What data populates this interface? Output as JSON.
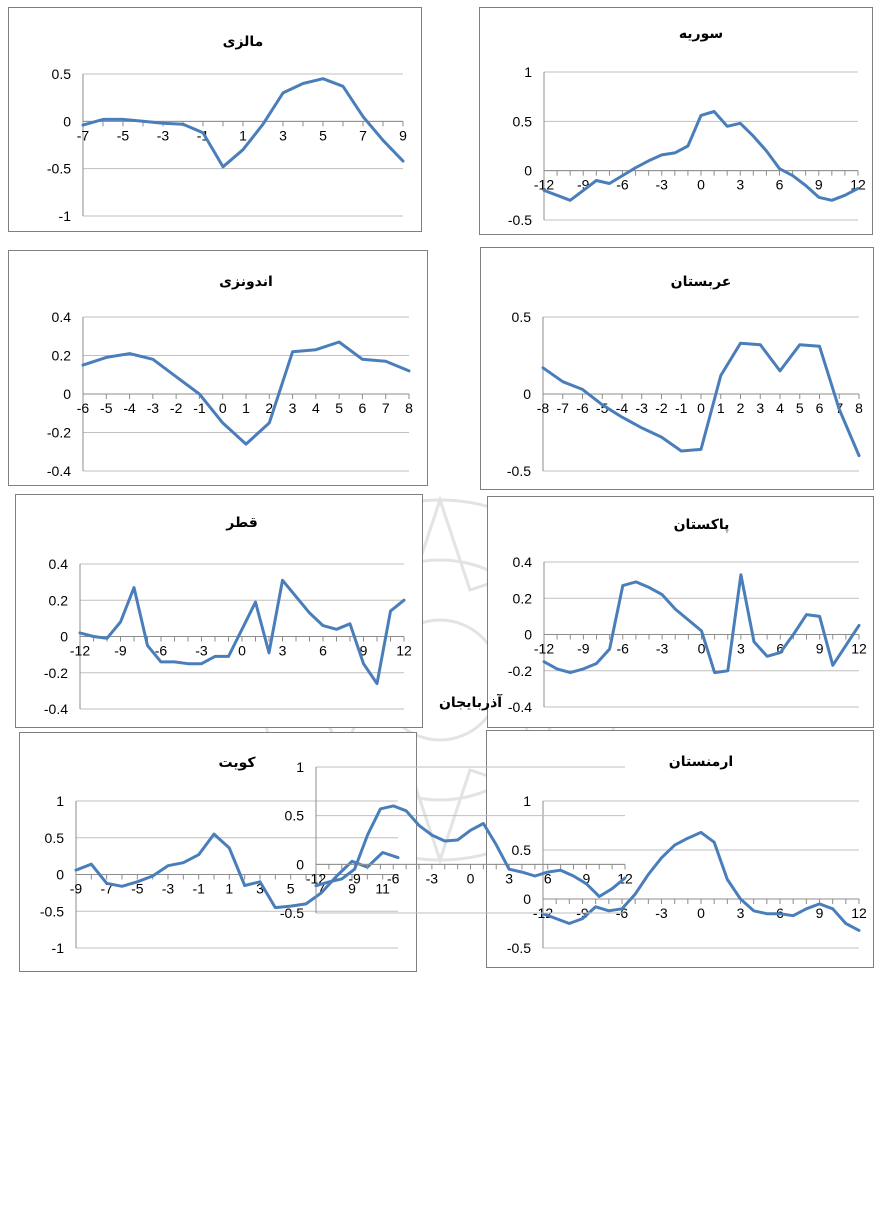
{
  "line_color": "#4a7ebb",
  "grid_color": "#bfbfbf",
  "chart_data": [
    {
      "type": "line",
      "title": "مالزی",
      "x": [
        -7,
        -6,
        -5,
        -4,
        -3,
        -2,
        -1,
        0,
        1,
        2,
        3,
        4,
        5,
        6,
        7,
        8,
        9
      ],
      "series": [
        {
          "values": [
            -0.04,
            0.02,
            0.02,
            0.0,
            -0.02,
            -0.03,
            -0.12,
            -0.48,
            -0.3,
            -0.03,
            0.3,
            0.4,
            0.45,
            0.37,
            0.05,
            -0.2,
            -0.42
          ]
        }
      ],
      "ylim": [
        -1,
        0.5
      ],
      "yticks": [
        -1,
        -0.5,
        0,
        0.5
      ],
      "ytick_labels": [
        "-1",
        "-0.5",
        "0",
        "0.5"
      ],
      "xtick_labels": [
        {
          "x": -7,
          "t": "-7"
        },
        {
          "x": -5,
          "t": "-5"
        },
        {
          "x": -3,
          "t": "-3"
        },
        {
          "x": -1,
          "t": "-1"
        },
        {
          "x": 1,
          "t": "1"
        },
        {
          "x": 3,
          "t": "3"
        },
        {
          "x": 5,
          "t": "5"
        },
        {
          "x": 7,
          "t": "7"
        },
        {
          "x": 9,
          "t": "9"
        }
      ],
      "grid": true
    },
    {
      "type": "line",
      "title": "سوریه",
      "x": [
        -12,
        -11,
        -10,
        -9,
        -8,
        -7,
        -6,
        -5,
        -4,
        -3,
        -2,
        -1,
        0,
        1,
        2,
        3,
        4,
        5,
        6,
        7,
        8,
        9,
        10,
        11,
        12
      ],
      "series": [
        {
          "values": [
            -0.2,
            -0.25,
            -0.3,
            -0.2,
            -0.1,
            -0.13,
            -0.05,
            0.03,
            0.1,
            0.16,
            0.18,
            0.25,
            0.56,
            0.6,
            0.45,
            0.48,
            0.35,
            0.2,
            0.02,
            -0.05,
            -0.15,
            -0.27,
            -0.3,
            -0.25,
            -0.18
          ]
        }
      ],
      "ylim": [
        -0.5,
        1
      ],
      "yticks": [
        -0.5,
        0,
        0.5,
        1
      ],
      "ytick_labels": [
        "-0.5",
        "0",
        "0.5",
        "1"
      ],
      "xtick_labels": [
        {
          "x": -12,
          "t": "-12"
        },
        {
          "x": -9,
          "t": "-9"
        },
        {
          "x": -6,
          "t": "-6"
        },
        {
          "x": -3,
          "t": "-3"
        },
        {
          "x": 0,
          "t": "0"
        },
        {
          "x": 3,
          "t": "3"
        },
        {
          "x": 6,
          "t": "6"
        },
        {
          "x": 9,
          "t": "9"
        },
        {
          "x": 12,
          "t": "12"
        }
      ],
      "grid": true
    },
    {
      "type": "line",
      "title": "اندونزی",
      "x": [
        -6,
        -5,
        -4,
        -3,
        -2,
        -1,
        0,
        1,
        2,
        3,
        4,
        5,
        6,
        7,
        8
      ],
      "series": [
        {
          "values": [
            0.15,
            0.19,
            0.21,
            0.18,
            0.09,
            0.0,
            -0.15,
            -0.26,
            -0.15,
            0.22,
            0.23,
            0.27,
            0.18,
            0.17,
            0.12
          ]
        }
      ],
      "ylim": [
        -0.4,
        0.4
      ],
      "yticks": [
        -0.4,
        -0.2,
        0,
        0.2,
        0.4
      ],
      "ytick_labels": [
        "-0.4",
        "-0.2",
        "0",
        "0.2",
        "0.4"
      ],
      "xtick_labels": [
        {
          "x": -6,
          "t": "-6"
        },
        {
          "x": -5,
          "t": "-5"
        },
        {
          "x": -4,
          "t": "-4"
        },
        {
          "x": -3,
          "t": "-3"
        },
        {
          "x": -2,
          "t": "-2"
        },
        {
          "x": -1,
          "t": "-1"
        },
        {
          "x": 0,
          "t": "0"
        },
        {
          "x": 1,
          "t": "1"
        },
        {
          "x": 2,
          "t": "2"
        },
        {
          "x": 3,
          "t": "3"
        },
        {
          "x": 4,
          "t": "4"
        },
        {
          "x": 5,
          "t": "5"
        },
        {
          "x": 6,
          "t": "6"
        },
        {
          "x": 7,
          "t": "7"
        },
        {
          "x": 8,
          "t": "8"
        }
      ],
      "grid": true
    },
    {
      "type": "line",
      "title": "عربستان",
      "x": [
        -8,
        -7,
        -6,
        -5,
        -4,
        -3,
        -2,
        -1,
        0,
        1,
        2,
        3,
        4,
        5,
        6,
        7,
        8
      ],
      "series": [
        {
          "values": [
            0.17,
            0.08,
            0.03,
            -0.07,
            -0.15,
            -0.22,
            -0.28,
            -0.37,
            -0.36,
            0.12,
            0.33,
            0.32,
            0.15,
            0.32,
            0.31,
            -0.1,
            -0.4
          ]
        }
      ],
      "ylim": [
        -0.5,
        0.5
      ],
      "yticks": [
        -0.5,
        0,
        0.5
      ],
      "ytick_labels": [
        "-0.5",
        "0",
        "0.5"
      ],
      "xtick_labels": [
        {
          "x": -8,
          "t": "-8"
        },
        {
          "x": -7,
          "t": "-7"
        },
        {
          "x": -6,
          "t": "-6"
        },
        {
          "x": -5,
          "t": "-5"
        },
        {
          "x": -4,
          "t": "-4"
        },
        {
          "x": -3,
          "t": "-3"
        },
        {
          "x": -2,
          "t": "-2"
        },
        {
          "x": -1,
          "t": "-1"
        },
        {
          "x": 0,
          "t": "0"
        },
        {
          "x": 1,
          "t": "1"
        },
        {
          "x": 2,
          "t": "2"
        },
        {
          "x": 3,
          "t": "3"
        },
        {
          "x": 4,
          "t": "4"
        },
        {
          "x": 5,
          "t": "5"
        },
        {
          "x": 6,
          "t": "6"
        },
        {
          "x": 7,
          "t": "7"
        },
        {
          "x": 8,
          "t": "8"
        }
      ],
      "grid": true
    },
    {
      "type": "line",
      "title": "قطر",
      "x": [
        -12,
        -11,
        -10,
        -9,
        -8,
        -7,
        -6,
        -5,
        -4,
        -3,
        -2,
        -1,
        0,
        1,
        2,
        3,
        4,
        5,
        6,
        7,
        8,
        9,
        10,
        11,
        12
      ],
      "series": [
        {
          "values": [
            0.02,
            0.0,
            -0.01,
            0.08,
            0.27,
            -0.05,
            -0.14,
            -0.14,
            -0.15,
            -0.15,
            -0.11,
            -0.11,
            0.04,
            0.19,
            -0.09,
            0.31,
            0.22,
            0.13,
            0.06,
            0.04,
            0.07,
            -0.15,
            -0.26,
            0.14,
            0.2
          ]
        }
      ],
      "ylim": [
        -0.4,
        0.4
      ],
      "yticks": [
        -0.4,
        -0.2,
        0,
        0.2,
        0.4
      ],
      "ytick_labels": [
        "-0.4",
        "-0.2",
        "0",
        "0.2",
        "0.4"
      ],
      "xtick_labels": [
        {
          "x": -12,
          "t": "-12"
        },
        {
          "x": -9,
          "t": "-9"
        },
        {
          "x": -6,
          "t": "-6"
        },
        {
          "x": -3,
          "t": "-3"
        },
        {
          "x": 0,
          "t": "0"
        },
        {
          "x": 3,
          "t": "3"
        },
        {
          "x": 6,
          "t": "6"
        },
        {
          "x": 9,
          "t": "9"
        },
        {
          "x": 12,
          "t": "12"
        }
      ],
      "grid": true
    },
    {
      "type": "line",
      "title": "پاکستان",
      "x": [
        -12,
        -11,
        -10,
        -9,
        -8,
        -7,
        -6,
        -5,
        -4,
        -3,
        -2,
        -1,
        0,
        1,
        2,
        3,
        4,
        5,
        6,
        7,
        8,
        9,
        10,
        11,
        12
      ],
      "series": [
        {
          "values": [
            -0.15,
            -0.19,
            -0.21,
            -0.19,
            -0.16,
            -0.08,
            0.27,
            0.29,
            0.26,
            0.22,
            0.14,
            0.08,
            0.02,
            -0.21,
            -0.2,
            0.33,
            -0.04,
            -0.12,
            -0.1,
            0.0,
            0.11,
            0.1,
            -0.17,
            -0.06,
            0.05
          ]
        }
      ],
      "ylim": [
        -0.4,
        0.4
      ],
      "yticks": [
        -0.4,
        -0.2,
        0,
        0.2,
        0.4
      ],
      "ytick_labels": [
        "-0.4",
        "-0.2",
        "0",
        "0.2",
        "0.4"
      ],
      "xtick_labels": [
        {
          "x": -12,
          "t": "-12"
        },
        {
          "x": -9,
          "t": "-9"
        },
        {
          "x": -6,
          "t": "-6"
        },
        {
          "x": -3,
          "t": "-3"
        },
        {
          "x": 0,
          "t": "0"
        },
        {
          "x": 3,
          "t": "3"
        },
        {
          "x": 6,
          "t": "6"
        },
        {
          "x": 9,
          "t": "9"
        },
        {
          "x": 12,
          "t": "12"
        }
      ],
      "grid": true
    },
    {
      "type": "line",
      "title": "کویت",
      "x": [
        -9,
        -8,
        -7,
        -6,
        -5,
        -4,
        -3,
        -2,
        -1,
        0,
        1,
        2,
        3,
        4,
        5,
        6,
        7,
        8,
        9,
        10,
        11,
        12
      ],
      "series": [
        {
          "values": [
            0.06,
            0.14,
            -0.12,
            -0.16,
            -0.1,
            -0.02,
            0.12,
            0.16,
            0.27,
            0.55,
            0.36,
            -0.15,
            -0.1,
            -0.45,
            -0.43,
            -0.4,
            -0.25,
            -0.02,
            0.18,
            0.1,
            0.3,
            0.23
          ]
        }
      ],
      "ylim": [
        -1,
        1
      ],
      "yticks": [
        -1,
        -0.5,
        0,
        0.5,
        1
      ],
      "ytick_labels": [
        "-1",
        "-0.5",
        "0",
        "0.5",
        "1"
      ],
      "xtick_labels": [
        {
          "x": -9,
          "t": "-9"
        },
        {
          "x": -7,
          "t": "-7"
        },
        {
          "x": -5,
          "t": "-5"
        },
        {
          "x": -3,
          "t": "-3"
        },
        {
          "x": -1,
          "t": "-1"
        },
        {
          "x": 1,
          "t": "1"
        },
        {
          "x": 3,
          "t": "3"
        },
        {
          "x": 5,
          "t": "5"
        },
        {
          "x": 7,
          "t": "7"
        },
        {
          "x": 9,
          "t": "9"
        },
        {
          "x": 11,
          "t": "11"
        }
      ],
      "grid": true
    },
    {
      "type": "line",
      "title": "ارمنستان",
      "x": [
        -12,
        -11,
        -10,
        -9,
        -8,
        -7,
        -6,
        -5,
        -4,
        -3,
        -2,
        -1,
        0,
        1,
        2,
        3,
        4,
        5,
        6,
        7,
        8,
        9,
        10,
        11,
        12
      ],
      "series": [
        {
          "values": [
            -0.15,
            -0.2,
            -0.25,
            -0.2,
            -0.08,
            -0.12,
            -0.1,
            0.05,
            0.25,
            0.42,
            0.55,
            0.62,
            0.68,
            0.58,
            0.2,
            0.0,
            -0.12,
            -0.15,
            -0.15,
            -0.17,
            -0.1,
            -0.05,
            -0.1,
            -0.25,
            -0.32
          ]
        }
      ],
      "ylim": [
        -0.5,
        1
      ],
      "yticks": [
        -0.5,
        0,
        0.5,
        1
      ],
      "ytick_labels": [
        "-0.5",
        "0",
        "0.5",
        "1"
      ],
      "xtick_labels": [
        {
          "x": -12,
          "t": "-12"
        },
        {
          "x": -9,
          "t": "-9"
        },
        {
          "x": -6,
          "t": "-6"
        },
        {
          "x": -3,
          "t": "-3"
        },
        {
          "x": 0,
          "t": "0"
        },
        {
          "x": 3,
          "t": "3"
        },
        {
          "x": 6,
          "t": "6"
        },
        {
          "x": 9,
          "t": "9"
        },
        {
          "x": 12,
          "t": "12"
        }
      ],
      "grid": true
    },
    {
      "type": "line",
      "title": "آذربایجان",
      "x": [
        -12,
        -11,
        -10,
        -9,
        -8,
        -7,
        -6,
        -5,
        -4,
        -3,
        -2,
        -1,
        0,
        1,
        2,
        3,
        4,
        5,
        6,
        7,
        8,
        9,
        10,
        11,
        12
      ],
      "series": [
        {
          "values": [
            -0.22,
            -0.18,
            -0.15,
            -0.05,
            0.3,
            0.57,
            0.6,
            0.55,
            0.4,
            0.3,
            0.24,
            0.25,
            0.35,
            0.42,
            0.2,
            -0.05,
            -0.08,
            -0.12,
            -0.08,
            -0.06,
            -0.12,
            -0.2,
            -0.33,
            -0.25,
            -0.14
          ]
        }
      ],
      "ylim": [
        -0.5,
        1
      ],
      "yticks": [
        -0.5,
        0,
        0.5,
        1
      ],
      "ytick_labels": [
        "-0.5",
        "0",
        "0.5",
        "1"
      ],
      "xtick_labels": [
        {
          "x": -12,
          "t": "-12"
        },
        {
          "x": -9,
          "t": "-9"
        },
        {
          "x": -6,
          "t": "-6"
        },
        {
          "x": -3,
          "t": "-3"
        },
        {
          "x": 0,
          "t": "0"
        },
        {
          "x": 3,
          "t": "3"
        },
        {
          "x": 6,
          "t": "6"
        },
        {
          "x": 9,
          "t": "9"
        },
        {
          "x": 12,
          "t": "12"
        }
      ],
      "grid": true
    }
  ]
}
